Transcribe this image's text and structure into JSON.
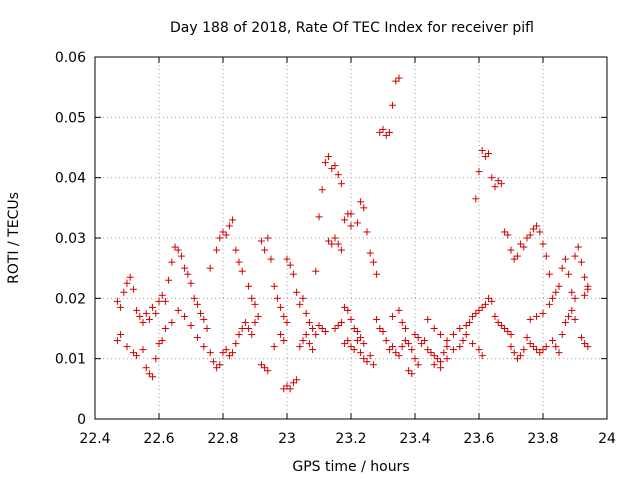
{
  "chart_data": {
    "type": "scatter",
    "title": "Day 188 of 2018, Rate Of TEC Index for receiver pifl",
    "xlabel": "GPS time / hours",
    "ylabel": "ROTI / TECUs",
    "xlim": [
      22.4,
      24.0
    ],
    "ylim": [
      0,
      0.06
    ],
    "x_ticks": [
      "22.4",
      "22.6",
      "22.8",
      "23",
      "23.2",
      "23.4",
      "23.6",
      "23.8",
      "24"
    ],
    "y_ticks": [
      "0",
      "0.01",
      "0.02",
      "0.03",
      "0.04",
      "0.05",
      "0.06"
    ],
    "grid": true,
    "marker": "+",
    "color": "#d00000",
    "series": [
      {
        "name": "ROTI",
        "points": [
          [
            22.47,
            0.0195
          ],
          [
            22.48,
            0.0185
          ],
          [
            22.49,
            0.021
          ],
          [
            22.5,
            0.0225
          ],
          [
            22.51,
            0.0235
          ],
          [
            22.52,
            0.0215
          ],
          [
            22.53,
            0.018
          ],
          [
            22.54,
            0.017
          ],
          [
            22.55,
            0.016
          ],
          [
            22.56,
            0.0175
          ],
          [
            22.57,
            0.0165
          ],
          [
            22.58,
            0.0185
          ],
          [
            22.59,
            0.0175
          ],
          [
            22.6,
            0.0195
          ],
          [
            22.61,
            0.0205
          ],
          [
            22.47,
            0.013
          ],
          [
            22.48,
            0.014
          ],
          [
            22.5,
            0.012
          ],
          [
            22.52,
            0.011
          ],
          [
            22.53,
            0.0105
          ],
          [
            22.55,
            0.0115
          ],
          [
            22.56,
            0.0085
          ],
          [
            22.57,
            0.0075
          ],
          [
            22.58,
            0.007
          ],
          [
            22.59,
            0.01
          ],
          [
            22.6,
            0.0125
          ],
          [
            22.61,
            0.013
          ],
          [
            22.62,
            0.0195
          ],
          [
            22.63,
            0.023
          ],
          [
            22.64,
            0.026
          ],
          [
            22.65,
            0.0285
          ],
          [
            22.66,
            0.028
          ],
          [
            22.67,
            0.027
          ],
          [
            22.68,
            0.025
          ],
          [
            22.69,
            0.024
          ],
          [
            22.7,
            0.0225
          ],
          [
            22.71,
            0.02
          ],
          [
            22.72,
            0.019
          ],
          [
            22.73,
            0.0175
          ],
          [
            22.74,
            0.0165
          ],
          [
            22.75,
            0.015
          ],
          [
            22.62,
            0.015
          ],
          [
            22.64,
            0.016
          ],
          [
            22.66,
            0.018
          ],
          [
            22.68,
            0.017
          ],
          [
            22.7,
            0.0155
          ],
          [
            22.72,
            0.0135
          ],
          [
            22.74,
            0.012
          ],
          [
            22.76,
            0.011
          ],
          [
            22.77,
            0.0095
          ],
          [
            22.78,
            0.0085
          ],
          [
            22.79,
            0.009
          ],
          [
            22.76,
            0.025
          ],
          [
            22.78,
            0.028
          ],
          [
            22.79,
            0.03
          ],
          [
            22.8,
            0.031
          ],
          [
            22.81,
            0.0305
          ],
          [
            22.82,
            0.032
          ],
          [
            22.83,
            0.033
          ],
          [
            22.84,
            0.028
          ],
          [
            22.85,
            0.026
          ],
          [
            22.86,
            0.0245
          ],
          [
            22.88,
            0.022
          ],
          [
            22.89,
            0.02
          ],
          [
            22.9,
            0.019
          ],
          [
            22.8,
            0.011
          ],
          [
            22.81,
            0.0115
          ],
          [
            22.82,
            0.0105
          ],
          [
            22.83,
            0.011
          ],
          [
            22.84,
            0.0125
          ],
          [
            22.85,
            0.014
          ],
          [
            22.86,
            0.015
          ],
          [
            22.87,
            0.016
          ],
          [
            22.88,
            0.015
          ],
          [
            22.89,
            0.014
          ],
          [
            22.9,
            0.016
          ],
          [
            22.91,
            0.017
          ],
          [
            22.92,
            0.0295
          ],
          [
            22.93,
            0.028
          ],
          [
            22.94,
            0.03
          ],
          [
            22.95,
            0.0265
          ],
          [
            22.96,
            0.022
          ],
          [
            22.97,
            0.02
          ],
          [
            22.98,
            0.0185
          ],
          [
            22.99,
            0.017
          ],
          [
            23.0,
            0.016
          ],
          [
            22.92,
            0.009
          ],
          [
            22.93,
            0.0085
          ],
          [
            22.94,
            0.008
          ],
          [
            22.96,
            0.012
          ],
          [
            22.98,
            0.014
          ],
          [
            22.99,
            0.013
          ],
          [
            22.99,
            0.005
          ],
          [
            23.0,
            0.0055
          ],
          [
            23.01,
            0.005
          ],
          [
            23.02,
            0.006
          ],
          [
            23.03,
            0.0065
          ],
          [
            23.0,
            0.0265
          ],
          [
            23.01,
            0.0255
          ],
          [
            23.02,
            0.024
          ],
          [
            23.03,
            0.021
          ],
          [
            23.04,
            0.019
          ],
          [
            23.05,
            0.02
          ],
          [
            23.06,
            0.0175
          ],
          [
            23.07,
            0.016
          ],
          [
            23.08,
            0.015
          ],
          [
            23.04,
            0.012
          ],
          [
            23.05,
            0.013
          ],
          [
            23.06,
            0.014
          ],
          [
            23.07,
            0.0125
          ],
          [
            23.08,
            0.0115
          ],
          [
            23.09,
            0.014
          ],
          [
            23.1,
            0.0155
          ],
          [
            23.11,
            0.015
          ],
          [
            23.12,
            0.0145
          ],
          [
            23.09,
            0.0245
          ],
          [
            23.1,
            0.0335
          ],
          [
            23.11,
            0.038
          ],
          [
            23.12,
            0.0425
          ],
          [
            23.13,
            0.0435
          ],
          [
            23.14,
            0.0415
          ],
          [
            23.15,
            0.042
          ],
          [
            23.16,
            0.0405
          ],
          [
            23.17,
            0.039
          ],
          [
            23.13,
            0.0295
          ],
          [
            23.14,
            0.029
          ],
          [
            23.15,
            0.03
          ],
          [
            23.16,
            0.029
          ],
          [
            23.17,
            0.028
          ],
          [
            23.18,
            0.033
          ],
          [
            23.19,
            0.034
          ],
          [
            23.2,
            0.032
          ],
          [
            23.2,
            0.034
          ],
          [
            23.22,
            0.0325
          ],
          [
            23.23,
            0.036
          ],
          [
            23.24,
            0.035
          ],
          [
            23.25,
            0.031
          ],
          [
            23.26,
            0.0275
          ],
          [
            23.27,
            0.026
          ],
          [
            23.28,
            0.024
          ],
          [
            23.15,
            0.015
          ],
          [
            23.16,
            0.0155
          ],
          [
            23.17,
            0.016
          ],
          [
            23.18,
            0.0185
          ],
          [
            23.19,
            0.018
          ],
          [
            23.2,
            0.0165
          ],
          [
            23.21,
            0.015
          ],
          [
            23.22,
            0.0145
          ],
          [
            23.23,
            0.0135
          ],
          [
            23.24,
            0.0125
          ],
          [
            23.18,
            0.0125
          ],
          [
            23.19,
            0.013
          ],
          [
            23.2,
            0.012
          ],
          [
            23.21,
            0.0115
          ],
          [
            23.22,
            0.013
          ],
          [
            23.23,
            0.011
          ],
          [
            23.24,
            0.01
          ],
          [
            23.25,
            0.0095
          ],
          [
            23.26,
            0.0105
          ],
          [
            23.27,
            0.009
          ],
          [
            23.29,
            0.0475
          ],
          [
            23.3,
            0.048
          ],
          [
            23.31,
            0.047
          ],
          [
            23.32,
            0.0475
          ],
          [
            23.33,
            0.052
          ],
          [
            23.34,
            0.056
          ],
          [
            23.35,
            0.0565
          ],
          [
            23.28,
            0.0165
          ],
          [
            23.29,
            0.015
          ],
          [
            23.3,
            0.0145
          ],
          [
            23.31,
            0.013
          ],
          [
            23.32,
            0.0115
          ],
          [
            23.33,
            0.012
          ],
          [
            23.34,
            0.011
          ],
          [
            23.35,
            0.0105
          ],
          [
            23.36,
            0.012
          ],
          [
            23.37,
            0.013
          ],
          [
            23.38,
            0.0125
          ],
          [
            23.39,
            0.0115
          ],
          [
            23.4,
            0.01
          ],
          [
            23.33,
            0.017
          ],
          [
            23.35,
            0.018
          ],
          [
            23.36,
            0.016
          ],
          [
            23.37,
            0.015
          ],
          [
            23.38,
            0.008
          ],
          [
            23.39,
            0.0075
          ],
          [
            23.41,
            0.009
          ],
          [
            23.4,
            0.014
          ],
          [
            23.41,
            0.0135
          ],
          [
            23.42,
            0.0125
          ],
          [
            23.43,
            0.013
          ],
          [
            23.44,
            0.0115
          ],
          [
            23.45,
            0.011
          ],
          [
            23.46,
            0.0105
          ],
          [
            23.47,
            0.01
          ],
          [
            23.48,
            0.0095
          ],
          [
            23.49,
            0.011
          ],
          [
            23.5,
            0.012
          ],
          [
            23.44,
            0.0165
          ],
          [
            23.46,
            0.015
          ],
          [
            23.48,
            0.014
          ],
          [
            23.5,
            0.013
          ],
          [
            23.52,
            0.014
          ],
          [
            23.54,
            0.015
          ],
          [
            23.56,
            0.0155
          ],
          [
            23.57,
            0.016
          ],
          [
            23.58,
            0.017
          ],
          [
            23.59,
            0.0175
          ],
          [
            23.6,
            0.018
          ],
          [
            23.46,
            0.009
          ],
          [
            23.48,
            0.0085
          ],
          [
            23.5,
            0.01
          ],
          [
            23.52,
            0.0115
          ],
          [
            23.54,
            0.012
          ],
          [
            23.55,
            0.013
          ],
          [
            23.56,
            0.014
          ],
          [
            23.58,
            0.0125
          ],
          [
            23.6,
            0.0115
          ],
          [
            23.61,
            0.0105
          ],
          [
            23.59,
            0.0365
          ],
          [
            23.6,
            0.041
          ],
          [
            23.61,
            0.0445
          ],
          [
            23.62,
            0.0435
          ],
          [
            23.63,
            0.044
          ],
          [
            23.64,
            0.04
          ],
          [
            23.65,
            0.0385
          ],
          [
            23.66,
            0.0395
          ],
          [
            23.67,
            0.039
          ],
          [
            23.61,
            0.0185
          ],
          [
            23.62,
            0.019
          ],
          [
            23.63,
            0.02
          ],
          [
            23.64,
            0.0195
          ],
          [
            23.65,
            0.017
          ],
          [
            23.66,
            0.016
          ],
          [
            23.67,
            0.0155
          ],
          [
            23.68,
            0.015
          ],
          [
            23.69,
            0.0145
          ],
          [
            23.7,
            0.014
          ],
          [
            23.68,
            0.031
          ],
          [
            23.69,
            0.0305
          ],
          [
            23.7,
            0.028
          ],
          [
            23.71,
            0.0265
          ],
          [
            23.72,
            0.027
          ],
          [
            23.73,
            0.029
          ],
          [
            23.74,
            0.0285
          ],
          [
            23.7,
            0.012
          ],
          [
            23.71,
            0.011
          ],
          [
            23.72,
            0.01
          ],
          [
            23.73,
            0.0105
          ],
          [
            23.74,
            0.0115
          ],
          [
            23.75,
            0.0135
          ],
          [
            23.76,
            0.0125
          ],
          [
            23.77,
            0.012
          ],
          [
            23.78,
            0.0115
          ],
          [
            23.79,
            0.011
          ],
          [
            23.8,
            0.0115
          ],
          [
            23.81,
            0.012
          ],
          [
            23.75,
            0.03
          ],
          [
            23.76,
            0.0305
          ],
          [
            23.77,
            0.0315
          ],
          [
            23.78,
            0.032
          ],
          [
            23.79,
            0.031
          ],
          [
            23.8,
            0.029
          ],
          [
            23.81,
            0.027
          ],
          [
            23.82,
            0.024
          ],
          [
            23.76,
            0.0165
          ],
          [
            23.78,
            0.017
          ],
          [
            23.8,
            0.0175
          ],
          [
            23.82,
            0.019
          ],
          [
            23.83,
            0.02
          ],
          [
            23.84,
            0.021
          ],
          [
            23.85,
            0.022
          ],
          [
            23.86,
            0.025
          ],
          [
            23.87,
            0.0265
          ],
          [
            23.88,
            0.024
          ],
          [
            23.89,
            0.021
          ],
          [
            23.9,
            0.02
          ],
          [
            23.83,
            0.013
          ],
          [
            23.84,
            0.012
          ],
          [
            23.85,
            0.011
          ],
          [
            23.86,
            0.014
          ],
          [
            23.87,
            0.016
          ],
          [
            23.88,
            0.017
          ],
          [
            23.89,
            0.018
          ],
          [
            23.9,
            0.0165
          ],
          [
            23.9,
            0.027
          ],
          [
            23.91,
            0.0285
          ],
          [
            23.92,
            0.026
          ],
          [
            23.93,
            0.0235
          ],
          [
            23.94,
            0.0215
          ],
          [
            23.93,
            0.0125
          ],
          [
            23.92,
            0.0135
          ],
          [
            23.94,
            0.012
          ],
          [
            23.93,
            0.0205
          ],
          [
            23.94,
            0.022
          ]
        ]
      }
    ]
  }
}
